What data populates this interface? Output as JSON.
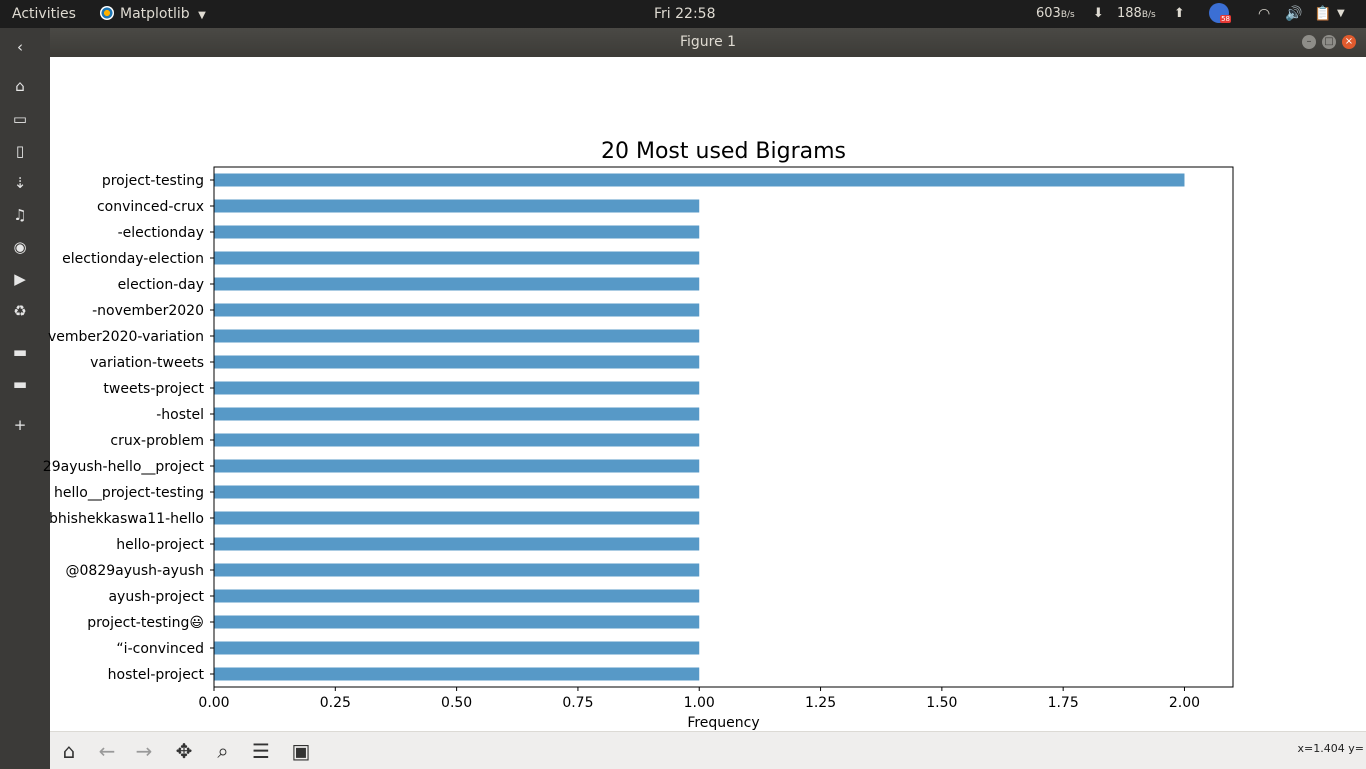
{
  "topbar": {
    "activities": "Activities",
    "app_name": "Matplotlib",
    "clock": "Fri 22:58",
    "down_speed": "603",
    "down_unit": "B/s",
    "up_speed": "188",
    "up_unit": "B/s",
    "badge_count": "58"
  },
  "window": {
    "title": "Figure 1"
  },
  "dock": {
    "icons": [
      "back-chevron-icon",
      "home-folder-icon",
      "documents-icon",
      "file-icon",
      "downloads-icon",
      "music-icon",
      "pictures-icon",
      "videos-icon",
      "trash-icon",
      "folder-icon",
      "folder-icon",
      "add-icon"
    ]
  },
  "toolbar": {
    "coords": "x=1.404 y="
  },
  "chart_data": {
    "type": "bar",
    "orientation": "horizontal",
    "title": "20 Most used Bigrams",
    "xlabel": "Frequency",
    "ylabel": "",
    "xlim": [
      0,
      2.1
    ],
    "xticks": [
      "0.00",
      "0.25",
      "0.50",
      "0.75",
      "1.00",
      "1.25",
      "1.50",
      "1.75",
      "2.00"
    ],
    "categories": [
      "project-testing",
      "convinced-crux",
      "-electionday",
      "electionday-election",
      "election-day",
      "-november2020",
      "vember2020-variation",
      "variation-tweets",
      "tweets-project",
      "-hostel",
      "crux-problem",
      "29ayush-hello__project",
      "hello__project-testing",
      "bhishekkaswa11-hello",
      "hello-project",
      "@0829ayush-ayush",
      "ayush-project",
      "project-testing😃",
      "“i-convinced",
      "hostel-project"
    ],
    "values": [
      2,
      1,
      1,
      1,
      1,
      1,
      1,
      1,
      1,
      1,
      1,
      1,
      1,
      1,
      1,
      1,
      1,
      1,
      1,
      1
    ],
    "color": "#5799c7",
    "grid": false,
    "legend": "none"
  }
}
